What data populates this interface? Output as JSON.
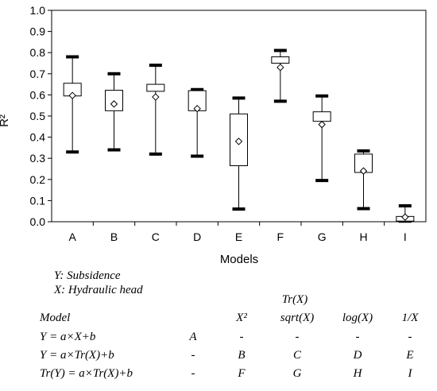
{
  "chart_data": {
    "type": "box",
    "ylabel": "R²",
    "xlabel": "Models",
    "ylim": [
      0,
      1.0
    ],
    "yticks": [
      "0.0",
      "0.1",
      "0.2",
      "0.3",
      "0.4",
      "0.5",
      "0.6",
      "0.7",
      "0.8",
      "0.9",
      "1.0"
    ],
    "categories": [
      "A",
      "B",
      "C",
      "D",
      "E",
      "F",
      "G",
      "H",
      "I"
    ],
    "boxes": [
      {
        "category": "A",
        "min": 0.33,
        "q1": 0.595,
        "q3": 0.655,
        "max": 0.78,
        "mean": 0.597
      },
      {
        "category": "B",
        "min": 0.34,
        "q1": 0.525,
        "q3": 0.622,
        "max": 0.7,
        "mean": 0.557
      },
      {
        "category": "C",
        "min": 0.32,
        "q1": 0.617,
        "q3": 0.65,
        "max": 0.74,
        "mean": 0.59
      },
      {
        "category": "D",
        "min": 0.31,
        "q1": 0.525,
        "q3": 0.62,
        "max": 0.625,
        "mean": 0.535
      },
      {
        "category": "E",
        "min": 0.06,
        "q1": 0.265,
        "q3": 0.51,
        "max": 0.585,
        "mean": 0.38
      },
      {
        "category": "F",
        "min": 0.57,
        "q1": 0.75,
        "q3": 0.78,
        "max": 0.81,
        "mean": 0.73
      },
      {
        "category": "G",
        "min": 0.195,
        "q1": 0.475,
        "q3": 0.52,
        "max": 0.595,
        "mean": 0.46
      },
      {
        "category": "H",
        "min": 0.062,
        "q1": 0.233,
        "q3": 0.32,
        "max": 0.335,
        "mean": 0.24
      },
      {
        "category": "I",
        "min": 0.003,
        "q1": 0.003,
        "q3": 0.025,
        "max": 0.075,
        "mean": 0.022
      }
    ]
  },
  "legend": {
    "y_def": "Y: Subsidence",
    "x_def": "X: Hydraulic head"
  },
  "table": {
    "group_header": "Tr(X)",
    "col_header_model": "Model",
    "columns": [
      "",
      "X²",
      "sqrt(X)",
      "log(X)",
      "1/X"
    ],
    "rows": [
      {
        "label": "Y = a×X+b",
        "cells": [
          "A",
          "-",
          "-",
          "-",
          "-"
        ]
      },
      {
        "label": "Y = a×Tr(X)+b",
        "cells": [
          "-",
          "B",
          "C",
          "D",
          "E"
        ]
      },
      {
        "label": "Tr(Y) = a×Tr(X)+b",
        "cells": [
          "-",
          "F",
          "G",
          "H",
          "I"
        ]
      }
    ]
  }
}
